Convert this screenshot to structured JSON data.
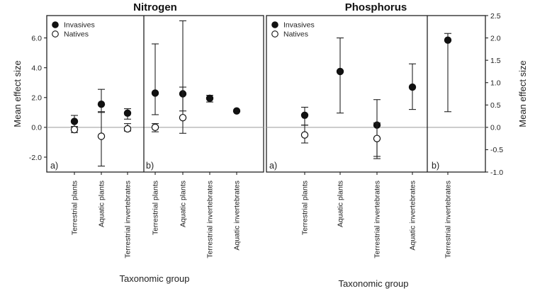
{
  "chart_data": [
    {
      "type": "scatter",
      "title": "Nitrogen",
      "ylabel": "Mean effect size",
      "ylim": [
        -3,
        7.5
      ],
      "yticks": [
        -2,
        0,
        2,
        4,
        6
      ],
      "ytick_labels": [
        "-2.0",
        "0.0",
        "2.0",
        "4.0",
        "6.0"
      ],
      "grid": false,
      "legend_position": "top-left",
      "legend": [
        "Invasives",
        "Natives"
      ],
      "subpanels": [
        {
          "label": "a)",
          "categories": [
            "Terrestrial plants",
            "Aquatic plants",
            "Terrestrial invertebrates"
          ],
          "series": [
            {
              "name": "Invasives",
              "marker": "filled",
              "values": [
                0.4,
                1.55,
                0.95
              ],
              "err_low": [
                0.05,
                1.0,
                0.55
              ],
              "err_high": [
                0.8,
                2.55,
                1.25
              ]
            },
            {
              "name": "Natives",
              "marker": "open",
              "values": [
                -0.15,
                -0.6,
                -0.1
              ],
              "err_low": [
                -0.35,
                -2.6,
                -0.25
              ],
              "err_high": [
                0.05,
                1.05,
                0.25
              ]
            }
          ]
        },
        {
          "label": "b)",
          "categories": [
            "Terrestrial plants",
            "Aquatic plants",
            "Terrestrial invertebrates",
            "Aquatic invertebrates"
          ],
          "series": [
            {
              "name": "Invasives",
              "marker": "filled",
              "values": [
                2.3,
                2.25,
                1.95,
                1.1
              ],
              "err_low": [
                0.85,
                1.1,
                1.7,
                null
              ],
              "err_high": [
                5.6,
                7.15,
                2.15,
                null
              ]
            },
            {
              "name": "Natives",
              "marker": "open",
              "values": [
                0.0,
                0.65,
                null,
                null
              ],
              "err_low": [
                -0.3,
                -0.4,
                null,
                null
              ],
              "err_high": [
                0.25,
                2.7,
                null,
                null
              ]
            }
          ]
        }
      ]
    },
    {
      "type": "scatter",
      "title": "Phosphorus",
      "ylabel": "Mean effect size",
      "ylim": [
        -1.0,
        2.5
      ],
      "yticks": [
        -1.0,
        -0.5,
        0.0,
        0.5,
        1.0,
        1.5,
        2.0,
        2.5
      ],
      "ytick_labels": [
        "-1.0",
        "-0.5",
        "0.0",
        "0.5",
        "1.0",
        "1.5",
        "2.0",
        "2.5"
      ],
      "grid": false,
      "legend_position": "top-left",
      "legend": [
        "Invasives",
        "Natives"
      ],
      "subpanels": [
        {
          "label": "a)",
          "categories": [
            "Terrestrial plants",
            "Aquatic plants",
            "Terrestrial invertebrates",
            "Aquatic invertebrates"
          ],
          "series": [
            {
              "name": "Invasives",
              "marker": "filled",
              "values": [
                0.27,
                1.25,
                0.05,
                0.9
              ],
              "err_low": [
                0.05,
                0.32,
                -0.65,
                0.4
              ],
              "err_high": [
                0.45,
                2.0,
                0.62,
                1.42
              ]
            },
            {
              "name": "Natives",
              "marker": "open",
              "values": [
                -0.17,
                null,
                -0.25,
                null
              ],
              "err_low": [
                -0.35,
                null,
                -0.7,
                null
              ],
              "err_high": [
                0.05,
                null,
                0.1,
                null
              ]
            }
          ]
        },
        {
          "label": "b)",
          "categories": [
            "Terrestrial invertebrates"
          ],
          "series": [
            {
              "name": "Invasives",
              "marker": "filled",
              "values": [
                1.95
              ],
              "err_low": [
                0.35
              ],
              "err_high": [
                2.1
              ]
            }
          ]
        }
      ]
    }
  ],
  "xlabel": "Taxonomic group"
}
